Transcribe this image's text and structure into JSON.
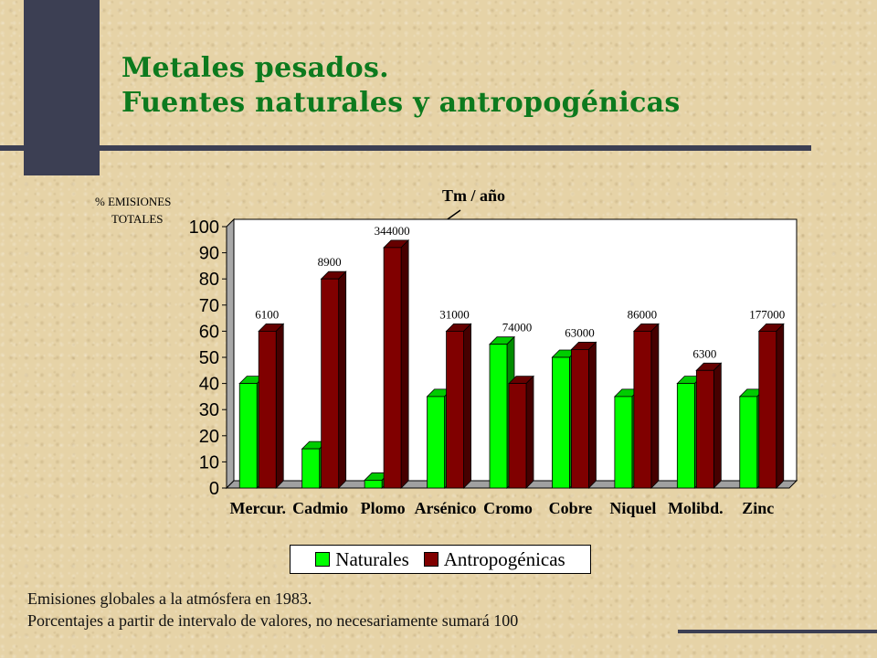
{
  "title": {
    "line1": "Metales pesados.",
    "line2": "Fuentes naturales y antropogénicas"
  },
  "chart_data": {
    "type": "bar",
    "ylabel_line1": "% EMISIONES",
    "ylabel_line2": "TOTALES",
    "annotation": "Tm / año",
    "annotation_target": "Plomo",
    "ylim": [
      0,
      100
    ],
    "yticks": [
      0,
      10,
      20,
      30,
      40,
      50,
      60,
      70,
      80,
      90,
      100
    ],
    "categories": [
      "Mercur.",
      "Cadmio",
      "Plomo",
      "Arsénico",
      "Cromo",
      "Cobre",
      "Niquel",
      "Molibd.",
      "Zinc"
    ],
    "tonnes_labels": [
      "6100",
      "8900",
      "344000",
      "31000",
      "74000",
      "63000",
      "86000",
      "6300",
      "177000"
    ],
    "series": [
      {
        "name": "Naturales",
        "color": "#00ff00",
        "values": [
          40,
          15,
          3,
          35,
          55,
          50,
          35,
          40,
          35
        ]
      },
      {
        "name": "Antropogénicas",
        "color": "#800000",
        "values": [
          60,
          80,
          92,
          60,
          40,
          53,
          60,
          45,
          60
        ]
      }
    ],
    "legend_position": "bottom",
    "grid": false
  },
  "notes": {
    "line1": "Emisiones globales a la atmósfera en 1983.",
    "line2": "Porcentajes a partir de intervalo de valores, no necesariamente sumará 100"
  },
  "colors": {
    "title": "#0d7a1e",
    "decor": "#3c3f53",
    "natural": "#00ff00",
    "anthropogenic": "#800000"
  }
}
